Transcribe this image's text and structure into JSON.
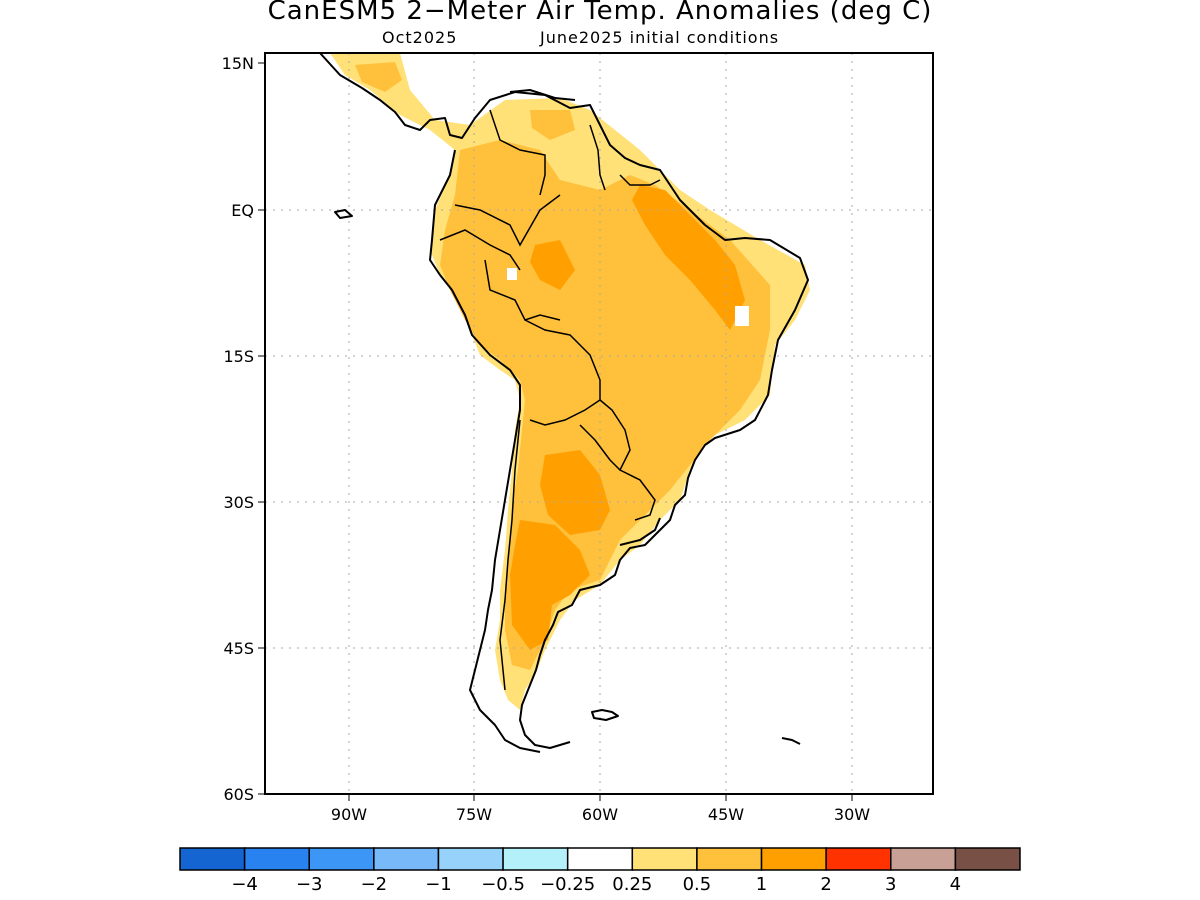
{
  "title": "CanESM5 2−Meter Air Temp. Anomalies (deg C)",
  "subtitle_left": "Oct2025",
  "subtitle_right": "June2025 initial conditions",
  "map": {
    "region": "South America",
    "lat_ticks": [
      "15N",
      "EQ",
      "15S",
      "30S",
      "45S",
      "60S"
    ],
    "lon_ticks": [
      "90W",
      "75W",
      "60W",
      "45W",
      "30W"
    ],
    "grid": "dotted"
  },
  "colorbar": {
    "colors": [
      "#1464d2",
      "#2882f0",
      "#3c96f5",
      "#78b9fa",
      "#96d2fa",
      "#b4f0fa",
      "#ffffff",
      "#ffe178",
      "#ffc03c",
      "#ffa000",
      "#ff3200",
      "#c8a096",
      "#785046"
    ],
    "labels": [
      "−4",
      "−3",
      "−2",
      "−1",
      "−0.5",
      "−0.25",
      "0.25",
      "0.5",
      "1",
      "2",
      "3",
      "4"
    ]
  }
}
